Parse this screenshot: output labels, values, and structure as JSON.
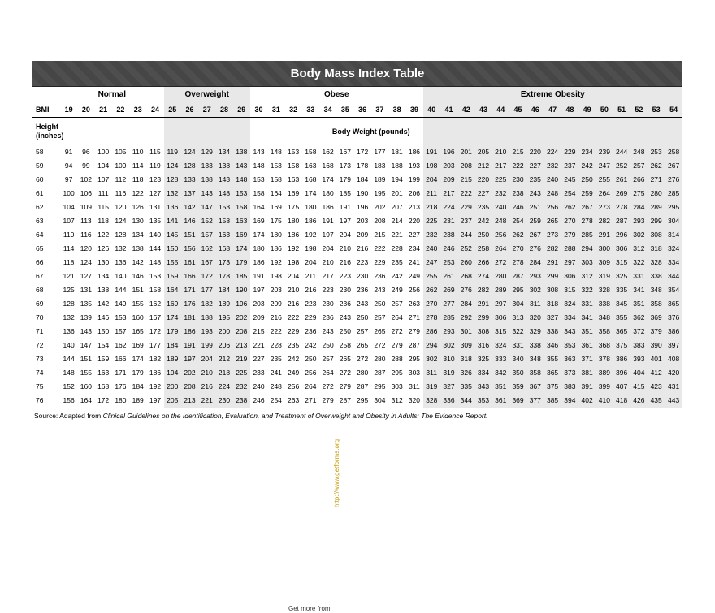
{
  "title": "Body Mass Index Table",
  "categories": [
    {
      "label": "Normal",
      "span": 6,
      "shade": ""
    },
    {
      "label": "Overweight",
      "span": 5,
      "shade": "shade-ow"
    },
    {
      "label": "Obese",
      "span": 10,
      "shade": ""
    },
    {
      "label": "Extreme Obesity",
      "span": 15,
      "shade": "shade-eo"
    }
  ],
  "bmi_label": "BMI",
  "height_label": "Height\n(inches)",
  "body_weight_label": "Body Weight (pounds)",
  "bmi_values": [
    19,
    20,
    21,
    22,
    23,
    24,
    25,
    26,
    27,
    28,
    29,
    30,
    31,
    32,
    33,
    34,
    35,
    36,
    37,
    38,
    39,
    40,
    41,
    42,
    43,
    44,
    45,
    46,
    47,
    48,
    49,
    50,
    51,
    52,
    53,
    54
  ],
  "heights": [
    58,
    59,
    60,
    61,
    62,
    63,
    64,
    65,
    66,
    67,
    68,
    69,
    70,
    71,
    72,
    73,
    74,
    75,
    76
  ],
  "weights": [
    [
      91,
      96,
      100,
      105,
      110,
      115,
      119,
      124,
      129,
      134,
      138,
      143,
      148,
      153,
      158,
      162,
      167,
      172,
      177,
      181,
      186,
      191,
      196,
      201,
      205,
      210,
      215,
      220,
      224,
      229,
      234,
      239,
      244,
      248,
      253,
      258
    ],
    [
      94,
      99,
      104,
      109,
      114,
      119,
      124,
      128,
      133,
      138,
      143,
      148,
      153,
      158,
      163,
      168,
      173,
      178,
      183,
      188,
      193,
      198,
      203,
      208,
      212,
      217,
      222,
      227,
      232,
      237,
      242,
      247,
      252,
      257,
      262,
      267
    ],
    [
      97,
      102,
      107,
      112,
      118,
      123,
      128,
      133,
      138,
      143,
      148,
      153,
      158,
      163,
      168,
      174,
      179,
      184,
      189,
      194,
      199,
      204,
      209,
      215,
      220,
      225,
      230,
      235,
      240,
      245,
      250,
      255,
      261,
      266,
      271,
      276
    ],
    [
      100,
      106,
      111,
      116,
      122,
      127,
      132,
      137,
      143,
      148,
      153,
      158,
      164,
      169,
      174,
      180,
      185,
      190,
      195,
      201,
      206,
      211,
      217,
      222,
      227,
      232,
      238,
      243,
      248,
      254,
      259,
      264,
      269,
      275,
      280,
      285
    ],
    [
      104,
      109,
      115,
      120,
      126,
      131,
      136,
      142,
      147,
      153,
      158,
      164,
      169,
      175,
      180,
      186,
      191,
      196,
      202,
      207,
      213,
      218,
      224,
      229,
      235,
      240,
      246,
      251,
      256,
      262,
      267,
      273,
      278,
      284,
      289,
      295
    ],
    [
      107,
      113,
      118,
      124,
      130,
      135,
      141,
      146,
      152,
      158,
      163,
      169,
      175,
      180,
      186,
      191,
      197,
      203,
      208,
      214,
      220,
      225,
      231,
      237,
      242,
      248,
      254,
      259,
      265,
      270,
      278,
      282,
      287,
      293,
      299,
      304
    ],
    [
      110,
      116,
      122,
      128,
      134,
      140,
      145,
      151,
      157,
      163,
      169,
      174,
      180,
      186,
      192,
      197,
      204,
      209,
      215,
      221,
      227,
      232,
      238,
      244,
      250,
      256,
      262,
      267,
      273,
      279,
      285,
      291,
      296,
      302,
      308,
      314
    ],
    [
      114,
      120,
      126,
      132,
      138,
      144,
      150,
      156,
      162,
      168,
      174,
      180,
      186,
      192,
      198,
      204,
      210,
      216,
      222,
      228,
      234,
      240,
      246,
      252,
      258,
      264,
      270,
      276,
      282,
      288,
      294,
      300,
      306,
      312,
      318,
      324
    ],
    [
      118,
      124,
      130,
      136,
      142,
      148,
      155,
      161,
      167,
      173,
      179,
      186,
      192,
      198,
      204,
      210,
      216,
      223,
      229,
      235,
      241,
      247,
      253,
      260,
      266,
      272,
      278,
      284,
      291,
      297,
      303,
      309,
      315,
      322,
      328,
      334
    ],
    [
      121,
      127,
      134,
      140,
      146,
      153,
      159,
      166,
      172,
      178,
      185,
      191,
      198,
      204,
      211,
      217,
      223,
      230,
      236,
      242,
      249,
      255,
      261,
      268,
      274,
      280,
      287,
      293,
      299,
      306,
      312,
      319,
      325,
      331,
      338,
      344
    ],
    [
      125,
      131,
      138,
      144,
      151,
      158,
      164,
      171,
      177,
      184,
      190,
      197,
      203,
      210,
      216,
      223,
      230,
      236,
      243,
      249,
      256,
      262,
      269,
      276,
      282,
      289,
      295,
      302,
      308,
      315,
      322,
      328,
      335,
      341,
      348,
      354
    ],
    [
      128,
      135,
      142,
      149,
      155,
      162,
      169,
      176,
      182,
      189,
      196,
      203,
      209,
      216,
      223,
      230,
      236,
      243,
      250,
      257,
      263,
      270,
      277,
      284,
      291,
      297,
      304,
      311,
      318,
      324,
      331,
      338,
      345,
      351,
      358,
      365
    ],
    [
      132,
      139,
      146,
      153,
      160,
      167,
      174,
      181,
      188,
      195,
      202,
      209,
      216,
      222,
      229,
      236,
      243,
      250,
      257,
      264,
      271,
      278,
      285,
      292,
      299,
      306,
      313,
      320,
      327,
      334,
      341,
      348,
      355,
      362,
      369,
      376
    ],
    [
      136,
      143,
      150,
      157,
      165,
      172,
      179,
      186,
      193,
      200,
      208,
      215,
      222,
      229,
      236,
      243,
      250,
      257,
      265,
      272,
      279,
      286,
      293,
      301,
      308,
      315,
      322,
      329,
      338,
      343,
      351,
      358,
      365,
      372,
      379,
      386
    ],
    [
      140,
      147,
      154,
      162,
      169,
      177,
      184,
      191,
      199,
      206,
      213,
      221,
      228,
      235,
      242,
      250,
      258,
      265,
      272,
      279,
      287,
      294,
      302,
      309,
      316,
      324,
      331,
      338,
      346,
      353,
      361,
      368,
      375,
      383,
      390,
      397
    ],
    [
      144,
      151,
      159,
      166,
      174,
      182,
      189,
      197,
      204,
      212,
      219,
      227,
      235,
      242,
      250,
      257,
      265,
      272,
      280,
      288,
      295,
      302,
      310,
      318,
      325,
      333,
      340,
      348,
      355,
      363,
      371,
      378,
      386,
      393,
      401,
      408
    ],
    [
      148,
      155,
      163,
      171,
      179,
      186,
      194,
      202,
      210,
      218,
      225,
      233,
      241,
      249,
      256,
      264,
      272,
      280,
      287,
      295,
      303,
      311,
      319,
      326,
      334,
      342,
      350,
      358,
      365,
      373,
      381,
      389,
      396,
      404,
      412,
      420
    ],
    [
      152,
      160,
      168,
      176,
      184,
      192,
      200,
      208,
      216,
      224,
      232,
      240,
      248,
      256,
      264,
      272,
      279,
      287,
      295,
      303,
      311,
      319,
      327,
      335,
      343,
      351,
      359,
      367,
      375,
      383,
      391,
      399,
      407,
      415,
      423,
      431
    ],
    [
      156,
      164,
      172,
      180,
      189,
      197,
      205,
      213,
      221,
      230,
      238,
      246,
      254,
      263,
      271,
      279,
      287,
      295,
      304,
      312,
      320,
      328,
      336,
      344,
      353,
      361,
      369,
      377,
      385,
      394,
      402,
      410,
      418,
      426,
      435,
      443
    ]
  ],
  "source_prefix": "Source: Adapted from ",
  "source_italic": "Clinical Guidelines on the Identification, Evaluation, and Treatment of Overweight and Obesity in Adults: The Evidence Report.",
  "watermark": "http://www.getforms.org",
  "getmore": "Get more from",
  "shade_cols": {
    "ow_start": 6,
    "ow_end": 10,
    "eo_start": 21,
    "eo_end": 35
  },
  "column_width_first": 34,
  "cell_fontsize": 8.5,
  "header_fontsize": 10,
  "title_fontsize": 15,
  "colors": {
    "title_bg": "#4a4a4a",
    "title_fg": "#ffffff",
    "shade": "#e8e8e8",
    "border": "#000000",
    "watermark": "#c49a00"
  }
}
